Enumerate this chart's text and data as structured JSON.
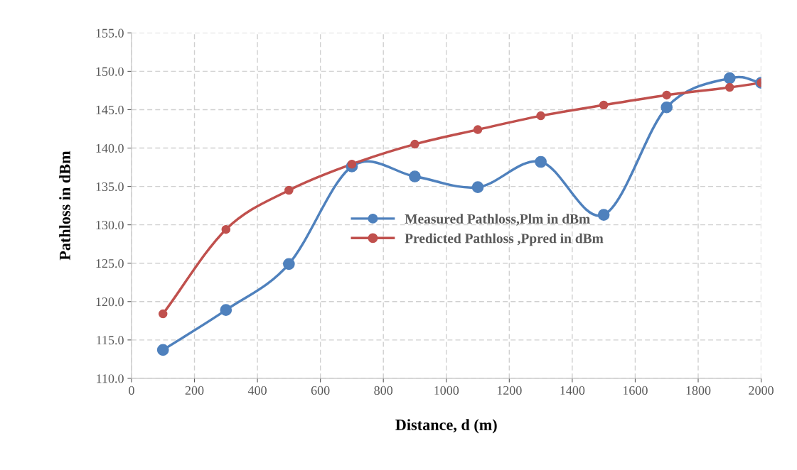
{
  "chart_data": {
    "type": "line",
    "xlabel": "Distance, d (m)",
    "ylabel": "Pathloss in dBm",
    "x": [
      100,
      300,
      500,
      700,
      900,
      1100,
      1300,
      1500,
      1700,
      1900,
      2000
    ],
    "series": [
      {
        "name": "Measured Pathloss,Plm in dBm",
        "color": "#4f81bd",
        "values": [
          113.7,
          118.9,
          124.9,
          137.6,
          136.3,
          134.9,
          138.2,
          131.3,
          145.3,
          149.1,
          148.5
        ]
      },
      {
        "name": "Predicted Pathloss ,Ppred in dBm",
        "color": "#c0504d",
        "values": [
          118.4,
          129.4,
          134.5,
          137.9,
          140.5,
          142.4,
          144.2,
          145.6,
          146.9,
          147.9,
          148.5
        ]
      }
    ],
    "xlim": [
      0,
      2000
    ],
    "xticks": [
      0,
      200,
      400,
      600,
      800,
      1000,
      1200,
      1400,
      1600,
      1800,
      2000
    ],
    "ylim": [
      110,
      155
    ],
    "yticks": [
      {
        "value": 110,
        "label": "110.0"
      },
      {
        "value": 115,
        "label": "115.0"
      },
      {
        "value": 120,
        "label": "120.0"
      },
      {
        "value": 125,
        "label": "125.0"
      },
      {
        "value": 130,
        "label": "130.0"
      },
      {
        "value": 135,
        "label": "135.0"
      },
      {
        "value": 140,
        "label": "140.0"
      },
      {
        "value": 145,
        "label": "145.0"
      },
      {
        "value": 150,
        "label": "150.0"
      },
      {
        "value": 155,
        "label": "155.0"
      }
    ],
    "grid": true,
    "legend": "center",
    "marker": "circle",
    "line_style": "solid"
  }
}
